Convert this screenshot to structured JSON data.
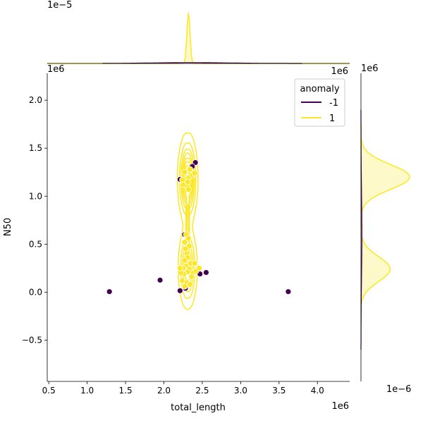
{
  "chart_data": {
    "type": "scatter",
    "subtype": "jointplot-kde",
    "xlabel": "total_length",
    "ylabel": "N50",
    "x_offset_label": "1e6",
    "y_offset_label": "1e6",
    "top_marginal_offset_label": "1e−5",
    "right_marginal_offset_label_top": "1e6",
    "right_marginal_offset_label_bottom": "1e−6",
    "xlim": [
      0.48,
      4.42
    ],
    "ylim": [
      -0.93,
      2.28
    ],
    "xticks": [
      0.5,
      1.0,
      1.5,
      2.0,
      2.5,
      3.0,
      3.5,
      4.0
    ],
    "xtick_labels": [
      "0.5",
      "1.0",
      "1.5",
      "2.0",
      "2.5",
      "3.0",
      "3.5",
      "4.0"
    ],
    "yticks": [
      -0.5,
      0.0,
      0.5,
      1.0,
      1.5,
      2.0
    ],
    "ytick_labels": [
      "−0.5",
      "0.0",
      "0.5",
      "1.0",
      "1.5",
      "2.0"
    ],
    "legend": {
      "title": "anomaly",
      "placement": "top-right",
      "entries": [
        {
          "label": "-1",
          "color": "#440154"
        },
        {
          "label": "1",
          "color": "#fde725"
        }
      ]
    },
    "series": [
      {
        "name": "-1",
        "color": "#440154",
        "points": [
          {
            "x": 1.29,
            "y": 0.005
          },
          {
            "x": 1.95,
            "y": 0.125
          },
          {
            "x": 2.21,
            "y": 0.015
          },
          {
            "x": 2.28,
            "y": 0.04
          },
          {
            "x": 2.55,
            "y": 0.205
          },
          {
            "x": 2.47,
            "y": 0.19
          },
          {
            "x": 3.62,
            "y": 0.005
          },
          {
            "x": 2.21,
            "y": 1.175
          },
          {
            "x": 2.41,
            "y": 1.35
          },
          {
            "x": 2.37,
            "y": 1.31
          },
          {
            "x": 2.27,
            "y": 0.6
          }
        ]
      },
      {
        "name": "1",
        "color": "#fde725",
        "points": [
          {
            "x": 2.26,
            "y": 1.22
          },
          {
            "x": 2.29,
            "y": 1.18
          },
          {
            "x": 2.31,
            "y": 1.26
          },
          {
            "x": 2.33,
            "y": 1.2
          },
          {
            "x": 2.28,
            "y": 1.14
          },
          {
            "x": 2.35,
            "y": 1.24
          },
          {
            "x": 2.3,
            "y": 1.1
          },
          {
            "x": 2.24,
            "y": 1.17
          },
          {
            "x": 2.37,
            "y": 1.22
          },
          {
            "x": 2.32,
            "y": 1.07
          },
          {
            "x": 2.27,
            "y": 1.25
          },
          {
            "x": 2.4,
            "y": 1.24
          },
          {
            "x": 2.34,
            "y": 1.28
          },
          {
            "x": 2.25,
            "y": 1.12
          },
          {
            "x": 2.31,
            "y": 1.15
          },
          {
            "x": 2.29,
            "y": 0.6
          },
          {
            "x": 2.32,
            "y": 0.56
          },
          {
            "x": 2.27,
            "y": 0.52
          },
          {
            "x": 2.33,
            "y": 0.48
          },
          {
            "x": 2.28,
            "y": 0.45
          },
          {
            "x": 2.3,
            "y": 0.4
          },
          {
            "x": 2.31,
            "y": 0.36
          },
          {
            "x": 2.27,
            "y": 0.33
          },
          {
            "x": 2.35,
            "y": 0.3
          },
          {
            "x": 2.29,
            "y": 0.27
          },
          {
            "x": 2.25,
            "y": 0.25
          },
          {
            "x": 2.33,
            "y": 0.24
          },
          {
            "x": 2.31,
            "y": 0.21
          },
          {
            "x": 2.26,
            "y": 0.19
          },
          {
            "x": 2.38,
            "y": 0.2
          },
          {
            "x": 2.42,
            "y": 0.22
          },
          {
            "x": 2.46,
            "y": 0.25
          },
          {
            "x": 2.22,
            "y": 0.2
          },
          {
            "x": 2.24,
            "y": 0.12
          },
          {
            "x": 2.3,
            "y": 0.1
          },
          {
            "x": 2.34,
            "y": 0.08
          },
          {
            "x": 2.27,
            "y": 0.06
          },
          {
            "x": 2.4,
            "y": 0.3
          },
          {
            "x": 2.36,
            "y": 0.16
          },
          {
            "x": 2.21,
            "y": 0.25
          }
        ]
      }
    ],
    "kde_modes": [
      {
        "center_x": 2.31,
        "center_y": 1.18,
        "sx": 0.055,
        "sy": 0.2,
        "weight": 0.6
      },
      {
        "center_x": 2.31,
        "center_y": 0.25,
        "sx": 0.055,
        "sy": 0.19,
        "weight": 0.4
      }
    ],
    "kde_levels": [
      0.05,
      0.16,
      0.28,
      0.4,
      0.52,
      0.64,
      0.76,
      0.88
    ],
    "marginal_x_peak": 2.32,
    "marginal_y_modes": [
      1.2,
      0.24
    ]
  }
}
